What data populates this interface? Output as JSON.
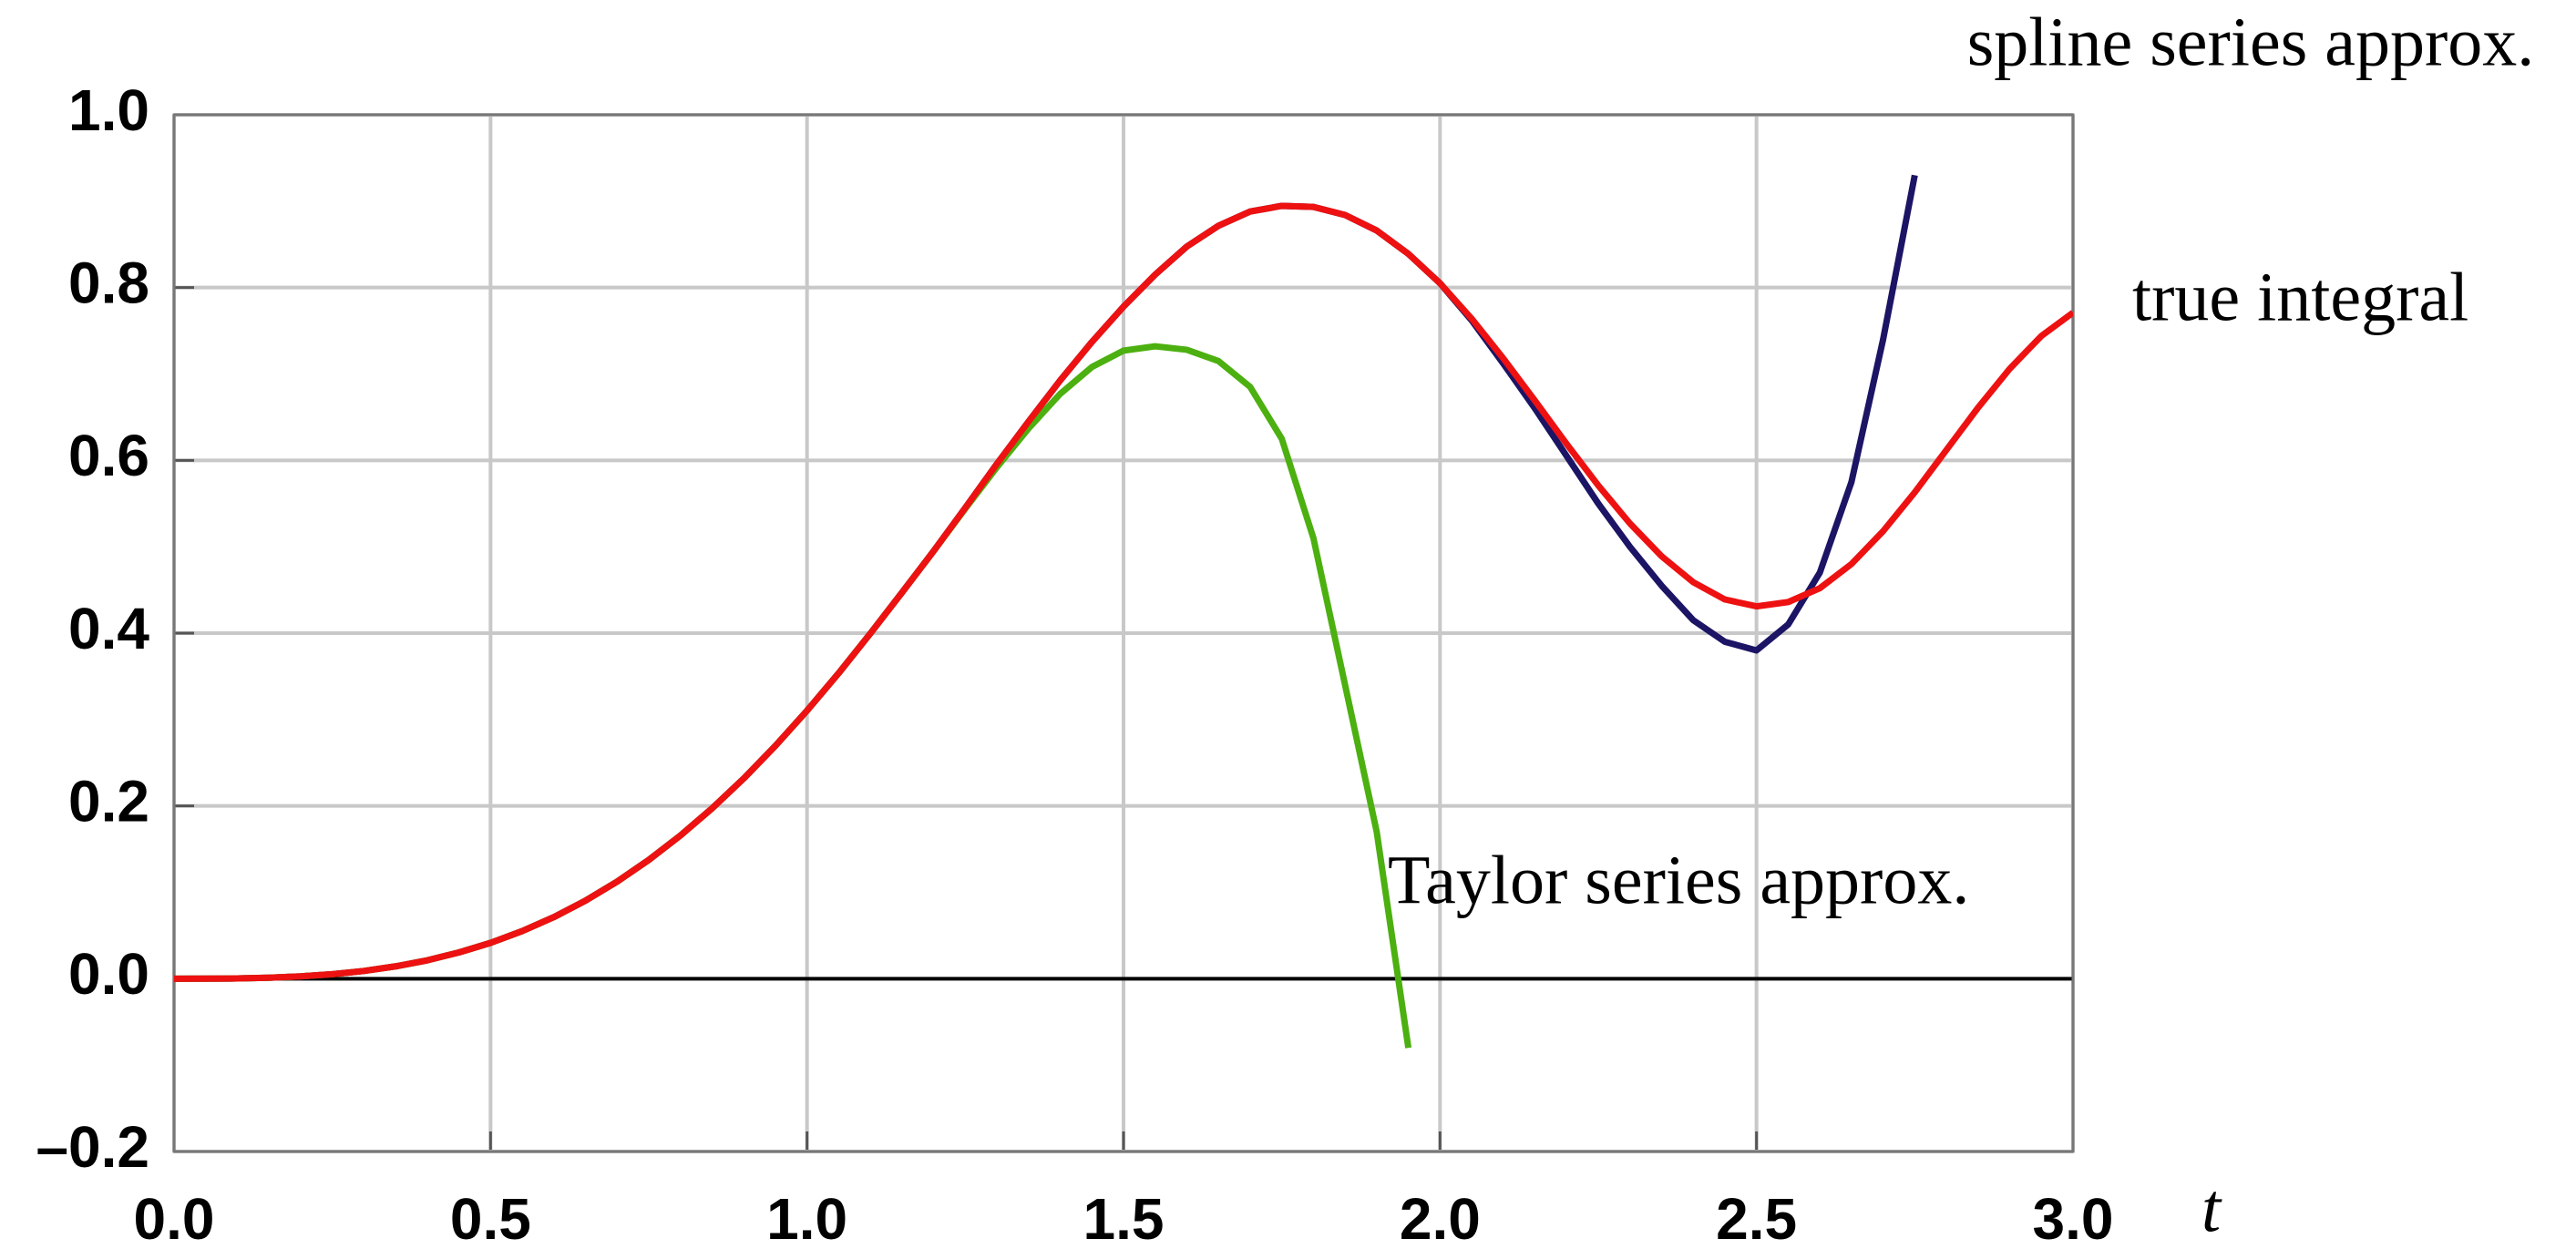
{
  "chart_data": {
    "type": "line",
    "x_label": "t",
    "x": [
      0,
      0.05,
      0.1,
      0.15,
      0.2,
      0.25,
      0.3,
      0.35,
      0.4,
      0.45,
      0.5,
      0.55,
      0.6,
      0.65,
      0.7,
      0.75,
      0.8,
      0.85,
      0.9,
      0.95,
      1,
      1.05,
      1.1,
      1.15,
      1.2,
      1.25,
      1.3,
      1.35,
      1.4,
      1.45,
      1.5,
      1.55,
      1.6,
      1.65,
      1.7,
      1.75,
      1.8,
      1.85,
      1.9,
      1.95,
      2,
      2.05,
      2.1,
      2.15,
      2.2,
      2.25,
      2.3,
      2.35,
      2.4,
      2.45,
      2.5,
      2.55,
      2.6,
      2.65,
      2.7,
      2.75,
      2.8,
      2.85,
      2.9,
      2.95,
      3
    ],
    "series": [
      {
        "name": "spline series approx.",
        "color": "#1c1464",
        "values": [
          0,
          4e-05,
          0.00033,
          0.00113,
          0.00267,
          0.0052,
          0.009,
          0.0143,
          0.0213,
          0.0304,
          0.0415,
          0.0551,
          0.0713,
          0.0904,
          0.1124,
          0.1375,
          0.1658,
          0.1972,
          0.2318,
          0.2696,
          0.3103,
          0.3537,
          0.3996,
          0.447,
          0.495,
          0.545,
          0.596,
          0.645,
          0.6926,
          0.737,
          0.778,
          0.815,
          0.8475,
          0.8715,
          0.888,
          0.8946,
          0.8934,
          0.884,
          0.866,
          0.839,
          0.805,
          0.762,
          0.712,
          0.66,
          0.605,
          0.55,
          0.5,
          0.455,
          0.415,
          0.39,
          0.38,
          0.41,
          0.47,
          0.575,
          0.74,
          0.93,
          null,
          null,
          null,
          null,
          null
        ]
      },
      {
        "name": "Taylor series approx.",
        "color": "#4cb010",
        "values": [
          0,
          4e-05,
          0.00033,
          0.00113,
          0.00267,
          0.0052,
          0.009,
          0.0143,
          0.0213,
          0.0304,
          0.0415,
          0.0551,
          0.0713,
          0.0904,
          0.1124,
          0.1375,
          0.1658,
          0.1972,
          0.2318,
          0.2696,
          0.3103,
          0.3537,
          0.3996,
          0.447,
          0.495,
          0.544,
          0.592,
          0.637,
          0.677,
          0.708,
          0.727,
          0.732,
          0.728,
          0.715,
          0.685,
          0.625,
          0.51,
          0.34,
          0.17,
          -0.08,
          null,
          null,
          null,
          null,
          null,
          null,
          null,
          null,
          null,
          null,
          null,
          null,
          null,
          null,
          null,
          null,
          null,
          null,
          null,
          null,
          null
        ]
      },
      {
        "name": "true integral",
        "color": "#ee1111",
        "values": [
          0,
          4e-05,
          0.00033,
          0.00113,
          0.00267,
          0.0052,
          0.009,
          0.0143,
          0.0213,
          0.0304,
          0.0415,
          0.0551,
          0.0713,
          0.0904,
          0.1124,
          0.1375,
          0.1658,
          0.1972,
          0.2318,
          0.2696,
          0.3103,
          0.3537,
          0.3996,
          0.447,
          0.495,
          0.545,
          0.596,
          0.645,
          0.6926,
          0.737,
          0.778,
          0.815,
          0.8475,
          0.8715,
          0.888,
          0.8946,
          0.8934,
          0.884,
          0.866,
          0.839,
          0.805,
          0.764,
          0.718,
          0.669,
          0.619,
          0.571,
          0.527,
          0.489,
          0.459,
          0.439,
          0.431,
          0.436,
          0.452,
          0.48,
          0.518,
          0.563,
          0.612,
          0.661,
          0.706,
          0.744,
          0.771
        ]
      }
    ],
    "xlim": [
      0,
      3
    ],
    "ylim": [
      -0.2,
      1
    ],
    "xticks": [
      {
        "value": 0,
        "label": "0.0"
      },
      0.5,
      {
        "value": 1,
        "label": "1.0"
      },
      1.5,
      {
        "value": 2,
        "label": "2.0"
      },
      2.5,
      {
        "value": 3,
        "label": "3.0"
      }
    ],
    "yticks": [
      {
        "value": -0.2,
        "label": "–0.2"
      },
      {
        "value": 0,
        "label": "0.0"
      },
      0.2,
      0.4,
      0.6,
      0.8,
      {
        "value": 1,
        "label": "1.0"
      }
    ],
    "grid": true
  }
}
